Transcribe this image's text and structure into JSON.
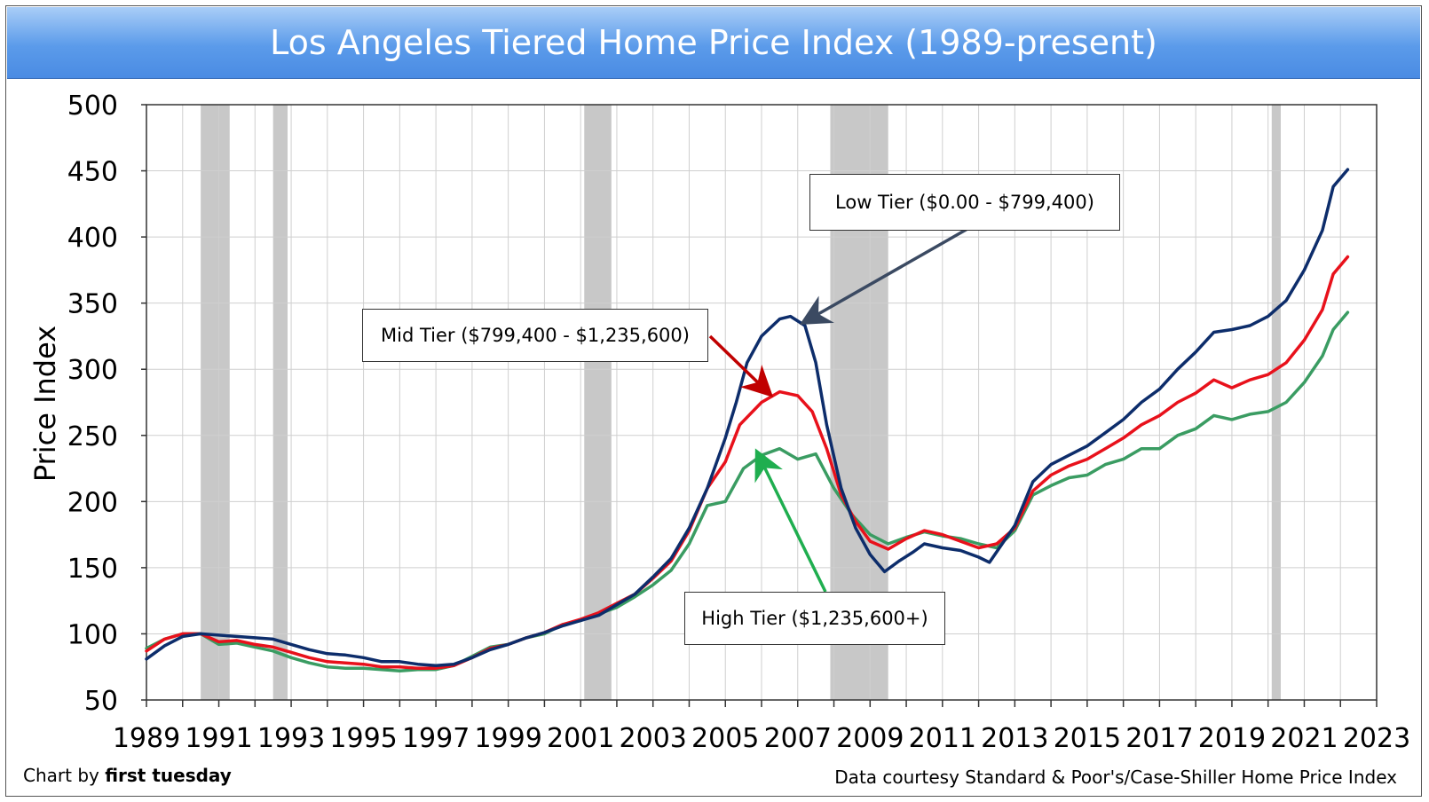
{
  "title": "Los Angeles Tiered Home Price Index (1989-present)",
  "credit_left_prefix": "Chart by ",
  "credit_left_brand": "first tuesday",
  "credit_right": "Data courtesy Standard & Poor's/Case-Shiller Home Price Index",
  "colors": {
    "low": "#0d2d6b",
    "mid": "#e8111b",
    "high": "#3a9c62",
    "recession": "#c8c8c8",
    "grid": "#cfcfcf"
  },
  "chart_data": {
    "type": "line",
    "title": "Los Angeles Tiered Home Price Index (1989-present)",
    "xlabel": "",
    "ylabel": "Price Index",
    "xlim": [
      1989,
      2023
    ],
    "ylim": [
      50,
      500
    ],
    "xticks": [
      1989,
      1991,
      1993,
      1995,
      1997,
      1999,
      2001,
      2003,
      2005,
      2007,
      2009,
      2011,
      2013,
      2015,
      2017,
      2019,
      2021,
      2023
    ],
    "yticks": [
      50,
      100,
      150,
      200,
      250,
      300,
      350,
      400,
      450,
      500
    ],
    "grid": true,
    "recessions": [
      [
        1990.5,
        1991.3
      ],
      [
        1992.5,
        1992.9
      ],
      [
        2001.1,
        2001.85
      ],
      [
        2007.9,
        2009.5
      ],
      [
        2020.1,
        2020.35
      ]
    ],
    "series": [
      {
        "key": "low",
        "name": "Low Tier ($0.00 - $799,400)",
        "points": [
          [
            1989,
            81
          ],
          [
            1989.5,
            91
          ],
          [
            1990,
            98
          ],
          [
            1990.5,
            100
          ],
          [
            1991,
            99
          ],
          [
            1991.5,
            98
          ],
          [
            1992,
            97
          ],
          [
            1992.5,
            96
          ],
          [
            1993,
            92
          ],
          [
            1993.5,
            88
          ],
          [
            1994,
            85
          ],
          [
            1994.5,
            84
          ],
          [
            1995,
            82
          ],
          [
            1995.5,
            79
          ],
          [
            1996,
            79
          ],
          [
            1996.5,
            77
          ],
          [
            1997,
            76
          ],
          [
            1997.5,
            77
          ],
          [
            1998,
            82
          ],
          [
            1998.5,
            88
          ],
          [
            1999,
            92
          ],
          [
            1999.5,
            97
          ],
          [
            2000,
            101
          ],
          [
            2000.5,
            106
          ],
          [
            2001,
            110
          ],
          [
            2001.5,
            114
          ],
          [
            2002,
            122
          ],
          [
            2002.5,
            130
          ],
          [
            2003,
            143
          ],
          [
            2003.5,
            157
          ],
          [
            2004,
            180
          ],
          [
            2004.5,
            210
          ],
          [
            2005,
            248
          ],
          [
            2005.3,
            275
          ],
          [
            2005.6,
            305
          ],
          [
            2006,
            325
          ],
          [
            2006.5,
            338
          ],
          [
            2006.8,
            340
          ],
          [
            2007.2,
            333
          ],
          [
            2007.5,
            305
          ],
          [
            2007.8,
            258
          ],
          [
            2008.2,
            210
          ],
          [
            2008.6,
            180
          ],
          [
            2009,
            160
          ],
          [
            2009.4,
            147
          ],
          [
            2009.8,
            155
          ],
          [
            2010.2,
            162
          ],
          [
            2010.5,
            168
          ],
          [
            2011,
            165
          ],
          [
            2011.5,
            163
          ],
          [
            2012,
            158
          ],
          [
            2012.3,
            154
          ],
          [
            2012.7,
            170
          ],
          [
            2013,
            182
          ],
          [
            2013.5,
            215
          ],
          [
            2014,
            228
          ],
          [
            2014.5,
            235
          ],
          [
            2015,
            242
          ],
          [
            2015.5,
            252
          ],
          [
            2016,
            262
          ],
          [
            2016.5,
            275
          ],
          [
            2017,
            285
          ],
          [
            2017.5,
            300
          ],
          [
            2018,
            313
          ],
          [
            2018.5,
            328
          ],
          [
            2019,
            330
          ],
          [
            2019.5,
            333
          ],
          [
            2020,
            340
          ],
          [
            2020.5,
            352
          ],
          [
            2021,
            375
          ],
          [
            2021.5,
            405
          ],
          [
            2021.8,
            438
          ],
          [
            2022.2,
            451
          ]
        ]
      },
      {
        "key": "mid",
        "name": "Mid Tier ($799,400 - $1,235,600)",
        "points": [
          [
            1989,
            87
          ],
          [
            1989.5,
            96
          ],
          [
            1990,
            100
          ],
          [
            1990.5,
            100
          ],
          [
            1991,
            94
          ],
          [
            1991.5,
            95
          ],
          [
            1992,
            92
          ],
          [
            1992.5,
            90
          ],
          [
            1993,
            86
          ],
          [
            1993.5,
            82
          ],
          [
            1994,
            79
          ],
          [
            1994.5,
            78
          ],
          [
            1995,
            77
          ],
          [
            1995.5,
            75
          ],
          [
            1996,
            75
          ],
          [
            1996.5,
            74
          ],
          [
            1997,
            74
          ],
          [
            1997.5,
            76
          ],
          [
            1998,
            82
          ],
          [
            1998.5,
            89
          ],
          [
            1999,
            92
          ],
          [
            1999.5,
            97
          ],
          [
            2000,
            101
          ],
          [
            2000.5,
            107
          ],
          [
            2001,
            111
          ],
          [
            2001.5,
            116
          ],
          [
            2002,
            123
          ],
          [
            2002.5,
            130
          ],
          [
            2003,
            142
          ],
          [
            2003.5,
            155
          ],
          [
            2004,
            178
          ],
          [
            2004.5,
            210
          ],
          [
            2005,
            230
          ],
          [
            2005.4,
            258
          ],
          [
            2006,
            275
          ],
          [
            2006.5,
            283
          ],
          [
            2007,
            280
          ],
          [
            2007.4,
            268
          ],
          [
            2007.8,
            240
          ],
          [
            2008.2,
            205
          ],
          [
            2008.6,
            185
          ],
          [
            2009,
            170
          ],
          [
            2009.5,
            164
          ],
          [
            2010,
            172
          ],
          [
            2010.5,
            178
          ],
          [
            2011,
            175
          ],
          [
            2011.5,
            170
          ],
          [
            2012,
            165
          ],
          [
            2012.5,
            168
          ],
          [
            2013,
            180
          ],
          [
            2013.5,
            208
          ],
          [
            2014,
            220
          ],
          [
            2014.5,
            227
          ],
          [
            2015,
            232
          ],
          [
            2015.5,
            240
          ],
          [
            2016,
            248
          ],
          [
            2016.5,
            258
          ],
          [
            2017,
            265
          ],
          [
            2017.5,
            275
          ],
          [
            2018,
            282
          ],
          [
            2018.5,
            292
          ],
          [
            2019,
            286
          ],
          [
            2019.5,
            292
          ],
          [
            2020,
            296
          ],
          [
            2020.5,
            305
          ],
          [
            2021,
            322
          ],
          [
            2021.5,
            345
          ],
          [
            2021.8,
            372
          ],
          [
            2022.2,
            385
          ]
        ]
      },
      {
        "key": "high",
        "name": "High Tier ($1,235,600+)",
        "points": [
          [
            1989,
            89
          ],
          [
            1989.5,
            96
          ],
          [
            1990,
            100
          ],
          [
            1990.5,
            100
          ],
          [
            1991,
            92
          ],
          [
            1991.5,
            93
          ],
          [
            1992,
            90
          ],
          [
            1992.5,
            87
          ],
          [
            1993,
            82
          ],
          [
            1993.5,
            78
          ],
          [
            1994,
            75
          ],
          [
            1994.5,
            74
          ],
          [
            1995,
            74
          ],
          [
            1995.5,
            73
          ],
          [
            1996,
            72
          ],
          [
            1996.5,
            73
          ],
          [
            1997,
            73
          ],
          [
            1997.5,
            76
          ],
          [
            1998,
            83
          ],
          [
            1998.5,
            90
          ],
          [
            1999,
            92
          ],
          [
            1999.5,
            97
          ],
          [
            2000,
            100
          ],
          [
            2000.5,
            107
          ],
          [
            2001,
            110
          ],
          [
            2001.5,
            115
          ],
          [
            2002,
            120
          ],
          [
            2002.5,
            128
          ],
          [
            2003,
            137
          ],
          [
            2003.5,
            148
          ],
          [
            2004,
            168
          ],
          [
            2004.5,
            197
          ],
          [
            2005,
            200
          ],
          [
            2005.5,
            225
          ],
          [
            2006,
            235
          ],
          [
            2006.5,
            240
          ],
          [
            2007,
            232
          ],
          [
            2007.5,
            236
          ],
          [
            2008,
            210
          ],
          [
            2008.5,
            190
          ],
          [
            2009,
            175
          ],
          [
            2009.5,
            168
          ],
          [
            2010,
            173
          ],
          [
            2010.5,
            177
          ],
          [
            2011,
            174
          ],
          [
            2011.5,
            172
          ],
          [
            2012,
            168
          ],
          [
            2012.5,
            165
          ],
          [
            2013,
            178
          ],
          [
            2013.5,
            205
          ],
          [
            2014,
            212
          ],
          [
            2014.5,
            218
          ],
          [
            2015,
            220
          ],
          [
            2015.5,
            228
          ],
          [
            2016,
            232
          ],
          [
            2016.5,
            240
          ],
          [
            2017,
            240
          ],
          [
            2017.5,
            250
          ],
          [
            2018,
            255
          ],
          [
            2018.5,
            265
          ],
          [
            2019,
            262
          ],
          [
            2019.5,
            266
          ],
          [
            2020,
            268
          ],
          [
            2020.5,
            275
          ],
          [
            2021,
            290
          ],
          [
            2021.5,
            310
          ],
          [
            2021.8,
            330
          ],
          [
            2022.2,
            343
          ]
        ]
      }
    ],
    "annotations": [
      {
        "key": "low",
        "text": "Low Tier ($0.00 - $799,400)",
        "target": [
          2007.2,
          336
        ]
      },
      {
        "key": "mid",
        "text": "Mid Tier ($799,400 - $1,235,600)",
        "target": [
          2006.2,
          282
        ]
      },
      {
        "key": "high",
        "text": "High Tier ($1,235,600+)",
        "target": [
          2005.9,
          236
        ]
      }
    ]
  }
}
